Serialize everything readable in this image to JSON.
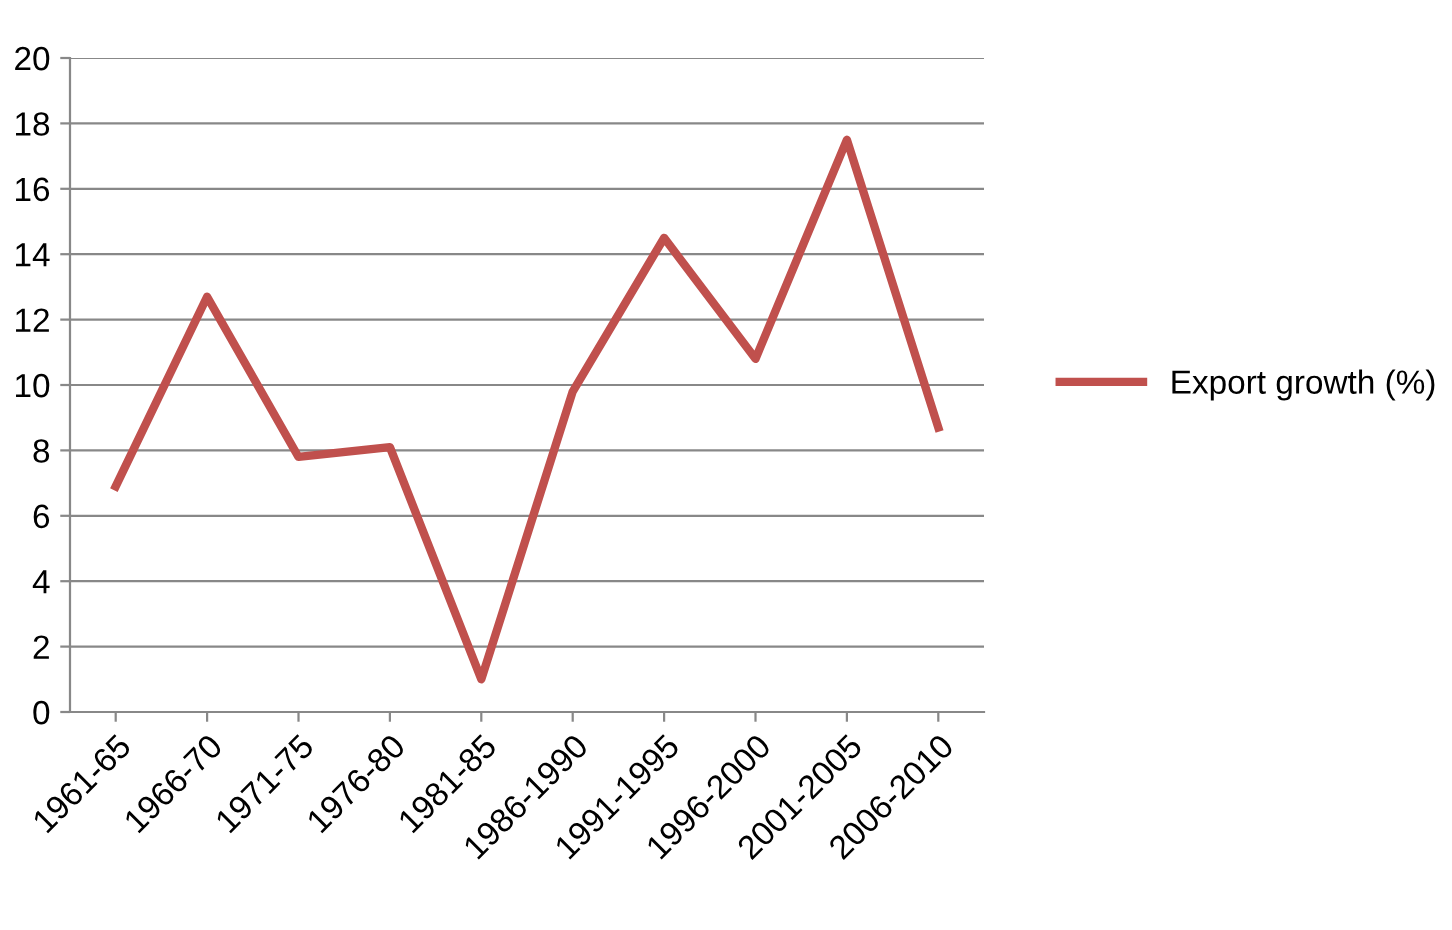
{
  "chart_data": {
    "type": "line",
    "categories": [
      "1961-65",
      "1966-70",
      "1971-75",
      "1976-80",
      "1981-85",
      "1986-1990",
      "1991-1995",
      "1996-2000",
      "2001-2005",
      "2006-2010"
    ],
    "series": [
      {
        "name": "Export growth (%)",
        "color": "#c0504d",
        "values": [
          6.9,
          12.7,
          7.8,
          8.1,
          1.0,
          9.8,
          14.5,
          10.8,
          17.5,
          8.7
        ]
      }
    ],
    "ylim": [
      0,
      20
    ],
    "yticks": [
      0,
      2,
      4,
      6,
      8,
      10,
      12,
      14,
      16,
      18,
      20
    ],
    "grid": "y",
    "legend": "right",
    "marker": "none",
    "line_style": "solid"
  }
}
